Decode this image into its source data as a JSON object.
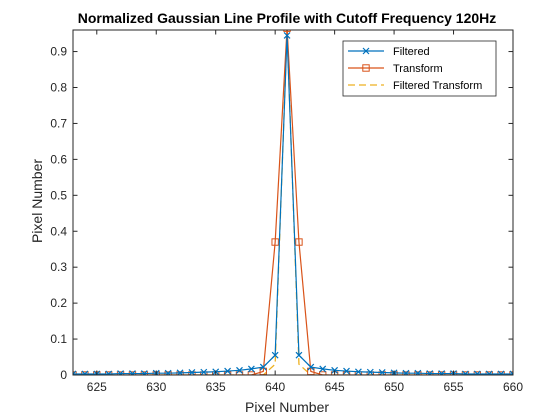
{
  "chart_data": {
    "type": "line",
    "title": "Normalized Gaussian Line Profile with Cutoff Frequency 120Hz",
    "xlabel": "Pixel Number",
    "ylabel": "Pixel Number",
    "xlim": [
      623,
      660
    ],
    "ylim": [
      0,
      0.96
    ],
    "x_ticks": [
      625,
      630,
      635,
      640,
      645,
      650,
      655,
      660
    ],
    "y_ticks": [
      0,
      0.1,
      0.2,
      0.3,
      0.4,
      0.5,
      0.6,
      0.7,
      0.8,
      0.9
    ],
    "legend_position": "top-right",
    "grid": false,
    "x": [
      623,
      624,
      625,
      626,
      627,
      628,
      629,
      630,
      631,
      632,
      633,
      634,
      635,
      636,
      637,
      638,
      639,
      640,
      641,
      642,
      643,
      644,
      645,
      646,
      647,
      648,
      649,
      650,
      651,
      652,
      653,
      654,
      655,
      656,
      657,
      658,
      659,
      660
    ],
    "series": [
      {
        "name": "Filtered",
        "color": "#0072BD",
        "marker": "x",
        "line": "solid",
        "values": [
          0.003,
          0.003,
          0.003,
          0.003,
          0.004,
          0.004,
          0.004,
          0.005,
          0.005,
          0.006,
          0.007,
          0.008,
          0.009,
          0.011,
          0.013,
          0.017,
          0.022,
          0.055,
          0.945,
          0.055,
          0.022,
          0.017,
          0.013,
          0.011,
          0.009,
          0.008,
          0.007,
          0.006,
          0.005,
          0.005,
          0.004,
          0.004,
          0.004,
          0.003,
          0.003,
          0.003,
          0.003,
          0.003
        ]
      },
      {
        "name": "Transform",
        "color": "#D95319",
        "marker": "square",
        "line": "solid",
        "values": [
          0,
          0,
          0,
          0,
          0,
          0,
          0,
          0,
          0,
          0,
          0,
          0,
          0,
          0,
          0,
          0,
          0.01,
          0.37,
          0.965,
          0.37,
          0.01,
          0,
          0,
          0,
          0,
          0,
          0,
          0,
          0,
          0,
          0,
          0,
          0,
          0,
          0,
          0,
          0,
          0
        ]
      },
      {
        "name": "Filtered Transform",
        "color": "#EDB120",
        "marker": "none",
        "line": "dashed",
        "values": [
          0,
          0,
          0,
          0,
          0,
          0,
          0,
          0,
          0,
          0,
          0,
          0,
          0,
          0,
          0,
          0,
          0,
          0.03,
          0.96,
          0.03,
          0,
          0,
          0,
          0,
          0,
          0,
          0,
          0,
          0,
          0,
          0,
          0,
          0,
          0,
          0,
          0,
          0,
          0
        ]
      }
    ]
  }
}
